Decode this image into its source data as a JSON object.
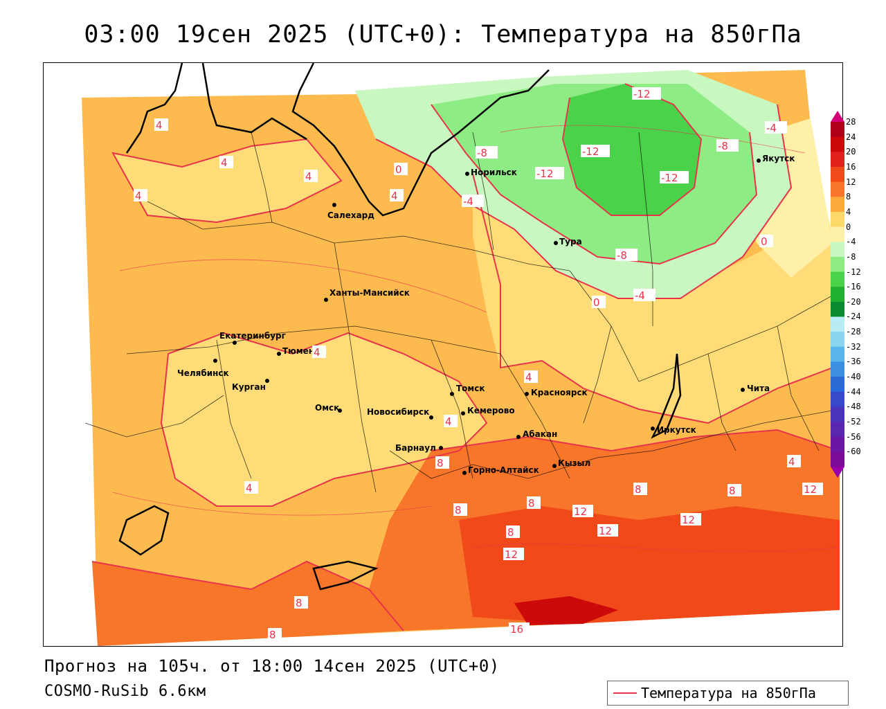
{
  "title": "03:00 19сен 2025 (UTC+0): Температура на 850гПа",
  "footer": {
    "forecast": "Прогноз на 105ч. от 18:00 14сен 2025 (UTC+0)",
    "model": "COSMO-RuSib 6.6км"
  },
  "legend": {
    "label": "Температура на 850гПа",
    "line_color": "#e8334a"
  },
  "colorbar": {
    "ticks": [
      "28",
      "24",
      "20",
      "16",
      "12",
      "8",
      "4",
      "0",
      "-4",
      "-8",
      "-12",
      "-16",
      "-20",
      "-24",
      "-28",
      "-32",
      "-36",
      "-40",
      "-44",
      "-48",
      "-52",
      "-56",
      "-60"
    ],
    "colors": [
      "#b0001a",
      "#cc0a0a",
      "#e0201a",
      "#f04a1a",
      "#f8762a",
      "#fdaa3c",
      "#ffd86a",
      "#fff0a8",
      "#c8f7c0",
      "#8eec84",
      "#4ad24a",
      "#22b030",
      "#0a8a30",
      "#b8ecf4",
      "#88d4f0",
      "#5ab4ec",
      "#3c8ee0",
      "#2a6ad6",
      "#3848c8",
      "#4a34bc",
      "#5a26b0",
      "#6a18a4",
      "#7a0c98"
    ]
  },
  "cities": [
    {
      "name": "Салехард"
    },
    {
      "name": "Норильск"
    },
    {
      "name": "Тура"
    },
    {
      "name": "Якутск"
    },
    {
      "name": "Ханты-Мансийск"
    },
    {
      "name": "Екатеринбург"
    },
    {
      "name": "Тюмень"
    },
    {
      "name": "Челябинск"
    },
    {
      "name": "Курган"
    },
    {
      "name": "Омск"
    },
    {
      "name": "Новосибирск"
    },
    {
      "name": "Томск"
    },
    {
      "name": "Кемерово"
    },
    {
      "name": "Красноярск"
    },
    {
      "name": "Абакан"
    },
    {
      "name": "Барнаул"
    },
    {
      "name": "Горно-Алтайск"
    },
    {
      "name": "Кызыл"
    },
    {
      "name": "Иркутск"
    },
    {
      "name": "Чита"
    }
  ],
  "isotherm_labels": [
    "-12",
    "-12",
    "-12",
    "-12",
    "-8",
    "-8",
    "-8",
    "-4",
    "-4",
    "-4",
    "0",
    "0",
    "0",
    "4",
    "4",
    "4",
    "4",
    "4",
    "4",
    "4",
    "4",
    "4",
    "4",
    "8",
    "8",
    "8",
    "8",
    "8",
    "8",
    "8",
    "8",
    "12",
    "12",
    "12",
    "12",
    "12",
    "16"
  ]
}
